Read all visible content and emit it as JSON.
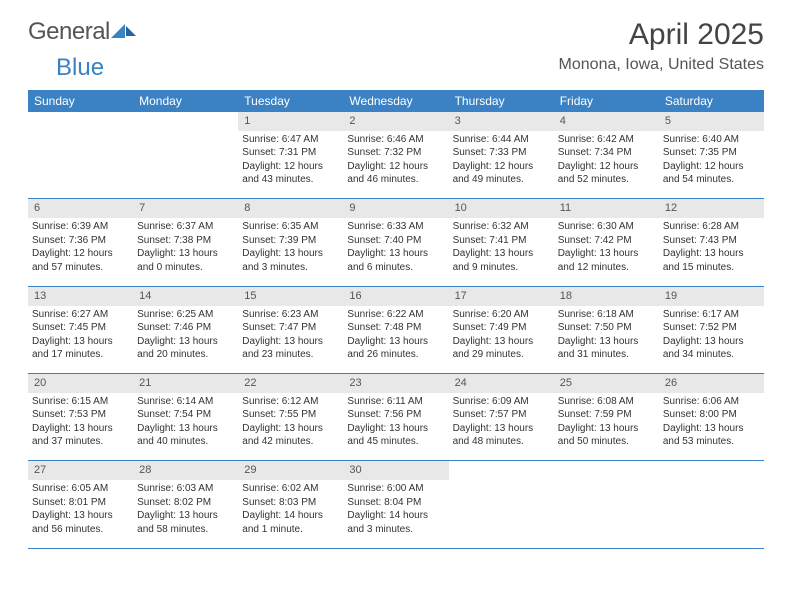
{
  "brand": {
    "part1": "General",
    "part2": "Blue"
  },
  "title": "April 2025",
  "location": "Monona, Iowa, United States",
  "dayHeaders": [
    "Sunday",
    "Monday",
    "Tuesday",
    "Wednesday",
    "Thursday",
    "Friday",
    "Saturday"
  ],
  "colors": {
    "header_bg": "#3b82c4",
    "daynum_bg": "#e8e8e8",
    "text": "#333333",
    "background": "#ffffff"
  },
  "weeks": [
    [
      null,
      null,
      {
        "n": "1",
        "sr": "6:47 AM",
        "ss": "7:31 PM",
        "dl": "12 hours and 43 minutes."
      },
      {
        "n": "2",
        "sr": "6:46 AM",
        "ss": "7:32 PM",
        "dl": "12 hours and 46 minutes."
      },
      {
        "n": "3",
        "sr": "6:44 AM",
        "ss": "7:33 PM",
        "dl": "12 hours and 49 minutes."
      },
      {
        "n": "4",
        "sr": "6:42 AM",
        "ss": "7:34 PM",
        "dl": "12 hours and 52 minutes."
      },
      {
        "n": "5",
        "sr": "6:40 AM",
        "ss": "7:35 PM",
        "dl": "12 hours and 54 minutes."
      }
    ],
    [
      {
        "n": "6",
        "sr": "6:39 AM",
        "ss": "7:36 PM",
        "dl": "12 hours and 57 minutes."
      },
      {
        "n": "7",
        "sr": "6:37 AM",
        "ss": "7:38 PM",
        "dl": "13 hours and 0 minutes."
      },
      {
        "n": "8",
        "sr": "6:35 AM",
        "ss": "7:39 PM",
        "dl": "13 hours and 3 minutes."
      },
      {
        "n": "9",
        "sr": "6:33 AM",
        "ss": "7:40 PM",
        "dl": "13 hours and 6 minutes."
      },
      {
        "n": "10",
        "sr": "6:32 AM",
        "ss": "7:41 PM",
        "dl": "13 hours and 9 minutes."
      },
      {
        "n": "11",
        "sr": "6:30 AM",
        "ss": "7:42 PM",
        "dl": "13 hours and 12 minutes."
      },
      {
        "n": "12",
        "sr": "6:28 AM",
        "ss": "7:43 PM",
        "dl": "13 hours and 15 minutes."
      }
    ],
    [
      {
        "n": "13",
        "sr": "6:27 AM",
        "ss": "7:45 PM",
        "dl": "13 hours and 17 minutes."
      },
      {
        "n": "14",
        "sr": "6:25 AM",
        "ss": "7:46 PM",
        "dl": "13 hours and 20 minutes."
      },
      {
        "n": "15",
        "sr": "6:23 AM",
        "ss": "7:47 PM",
        "dl": "13 hours and 23 minutes."
      },
      {
        "n": "16",
        "sr": "6:22 AM",
        "ss": "7:48 PM",
        "dl": "13 hours and 26 minutes."
      },
      {
        "n": "17",
        "sr": "6:20 AM",
        "ss": "7:49 PM",
        "dl": "13 hours and 29 minutes."
      },
      {
        "n": "18",
        "sr": "6:18 AM",
        "ss": "7:50 PM",
        "dl": "13 hours and 31 minutes."
      },
      {
        "n": "19",
        "sr": "6:17 AM",
        "ss": "7:52 PM",
        "dl": "13 hours and 34 minutes."
      }
    ],
    [
      {
        "n": "20",
        "sr": "6:15 AM",
        "ss": "7:53 PM",
        "dl": "13 hours and 37 minutes."
      },
      {
        "n": "21",
        "sr": "6:14 AM",
        "ss": "7:54 PM",
        "dl": "13 hours and 40 minutes."
      },
      {
        "n": "22",
        "sr": "6:12 AM",
        "ss": "7:55 PM",
        "dl": "13 hours and 42 minutes."
      },
      {
        "n": "23",
        "sr": "6:11 AM",
        "ss": "7:56 PM",
        "dl": "13 hours and 45 minutes."
      },
      {
        "n": "24",
        "sr": "6:09 AM",
        "ss": "7:57 PM",
        "dl": "13 hours and 48 minutes."
      },
      {
        "n": "25",
        "sr": "6:08 AM",
        "ss": "7:59 PM",
        "dl": "13 hours and 50 minutes."
      },
      {
        "n": "26",
        "sr": "6:06 AM",
        "ss": "8:00 PM",
        "dl": "13 hours and 53 minutes."
      }
    ],
    [
      {
        "n": "27",
        "sr": "6:05 AM",
        "ss": "8:01 PM",
        "dl": "13 hours and 56 minutes."
      },
      {
        "n": "28",
        "sr": "6:03 AM",
        "ss": "8:02 PM",
        "dl": "13 hours and 58 minutes."
      },
      {
        "n": "29",
        "sr": "6:02 AM",
        "ss": "8:03 PM",
        "dl": "14 hours and 1 minute."
      },
      {
        "n": "30",
        "sr": "6:00 AM",
        "ss": "8:04 PM",
        "dl": "14 hours and 3 minutes."
      },
      null,
      null,
      null
    ]
  ],
  "labels": {
    "sunrise": "Sunrise:",
    "sunset": "Sunset:",
    "daylight": "Daylight:"
  }
}
